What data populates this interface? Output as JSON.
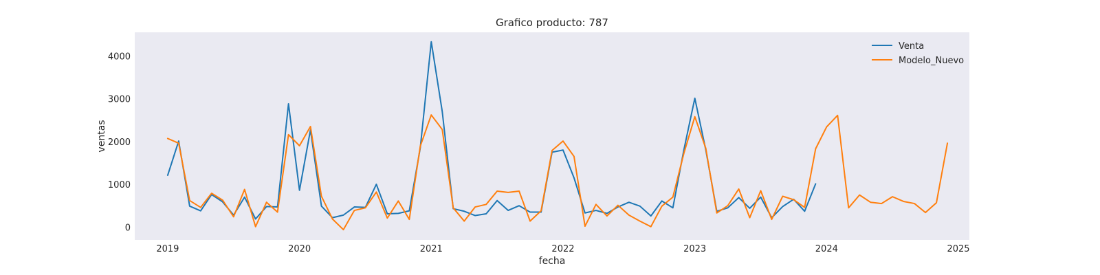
{
  "chart_data": {
    "type": "line",
    "title": "Grafico producto: 787",
    "xlabel": "fecha",
    "ylabel": "ventas",
    "x_range": [
      "2018-10",
      "2025-02"
    ],
    "ylim": [
      -300,
      4550
    ],
    "x_ticks": [
      "2019",
      "2020",
      "2021",
      "2022",
      "2023",
      "2024",
      "2025"
    ],
    "y_ticks": [
      0,
      1000,
      2000,
      3000,
      4000
    ],
    "grid": false,
    "legend_position": "top-right",
    "series": [
      {
        "name": "Venta",
        "color": "#1f77b4",
        "start": "2019-01",
        "values": [
          1210,
          2010,
          490,
          380,
          760,
          590,
          280,
          700,
          190,
          480,
          470,
          2880,
          860,
          2270,
          490,
          220,
          280,
          470,
          460,
          1000,
          310,
          320,
          380,
          1850,
          4330,
          2700,
          430,
          370,
          270,
          310,
          620,
          390,
          500,
          350,
          350,
          1750,
          1800,
          1150,
          330,
          390,
          320,
          470,
          580,
          490,
          260,
          610,
          450,
          1800,
          3010,
          1800,
          370,
          450,
          690,
          440,
          700,
          220,
          480,
          650,
          370,
          1010
        ]
      },
      {
        "name": "Modelo_Nuevo",
        "color": "#ff7f0e",
        "start": "2019-01",
        "values": [
          2070,
          1960,
          620,
          460,
          790,
          630,
          240,
          880,
          10,
          580,
          350,
          2160,
          1900,
          2350,
          720,
          190,
          -60,
          390,
          450,
          820,
          210,
          610,
          180,
          1890,
          2620,
          2280,
          450,
          140,
          470,
          530,
          840,
          810,
          840,
          140,
          380,
          1790,
          2010,
          1650,
          20,
          530,
          260,
          510,
          280,
          140,
          10,
          490,
          700,
          1720,
          2580,
          1840,
          330,
          500,
          890,
          220,
          850,
          180,
          720,
          640,
          460,
          1830,
          2340,
          2610,
          450,
          750,
          580,
          550,
          710,
          600,
          550,
          340,
          570,
          1960
        ]
      }
    ]
  }
}
